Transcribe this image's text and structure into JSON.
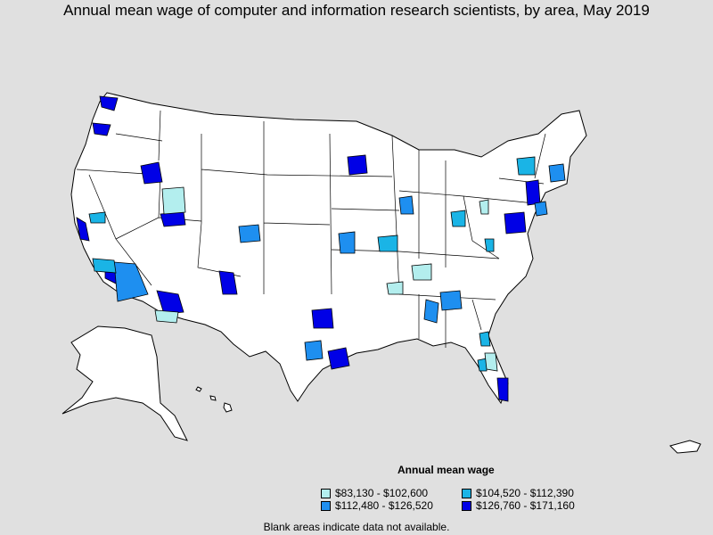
{
  "title": "Annual mean wage of computer and information research scientists, by area, May 2019",
  "legend": {
    "title": "Annual mean wage",
    "items": [
      {
        "label": "$83,130 - $102,600",
        "color": "#b3eeee"
      },
      {
        "label": "$104,520 - $112,390",
        "color": "#1ab4e6"
      },
      {
        "label": "$112,480 - $126,520",
        "color": "#1e8ff0"
      },
      {
        "label": "$126,760 - $171,160",
        "color": "#0000e6"
      }
    ]
  },
  "note": "Blank areas indicate data not available.",
  "colors": {
    "background": "#e0e0e0",
    "land": "#ffffff",
    "border": "#000000"
  }
}
